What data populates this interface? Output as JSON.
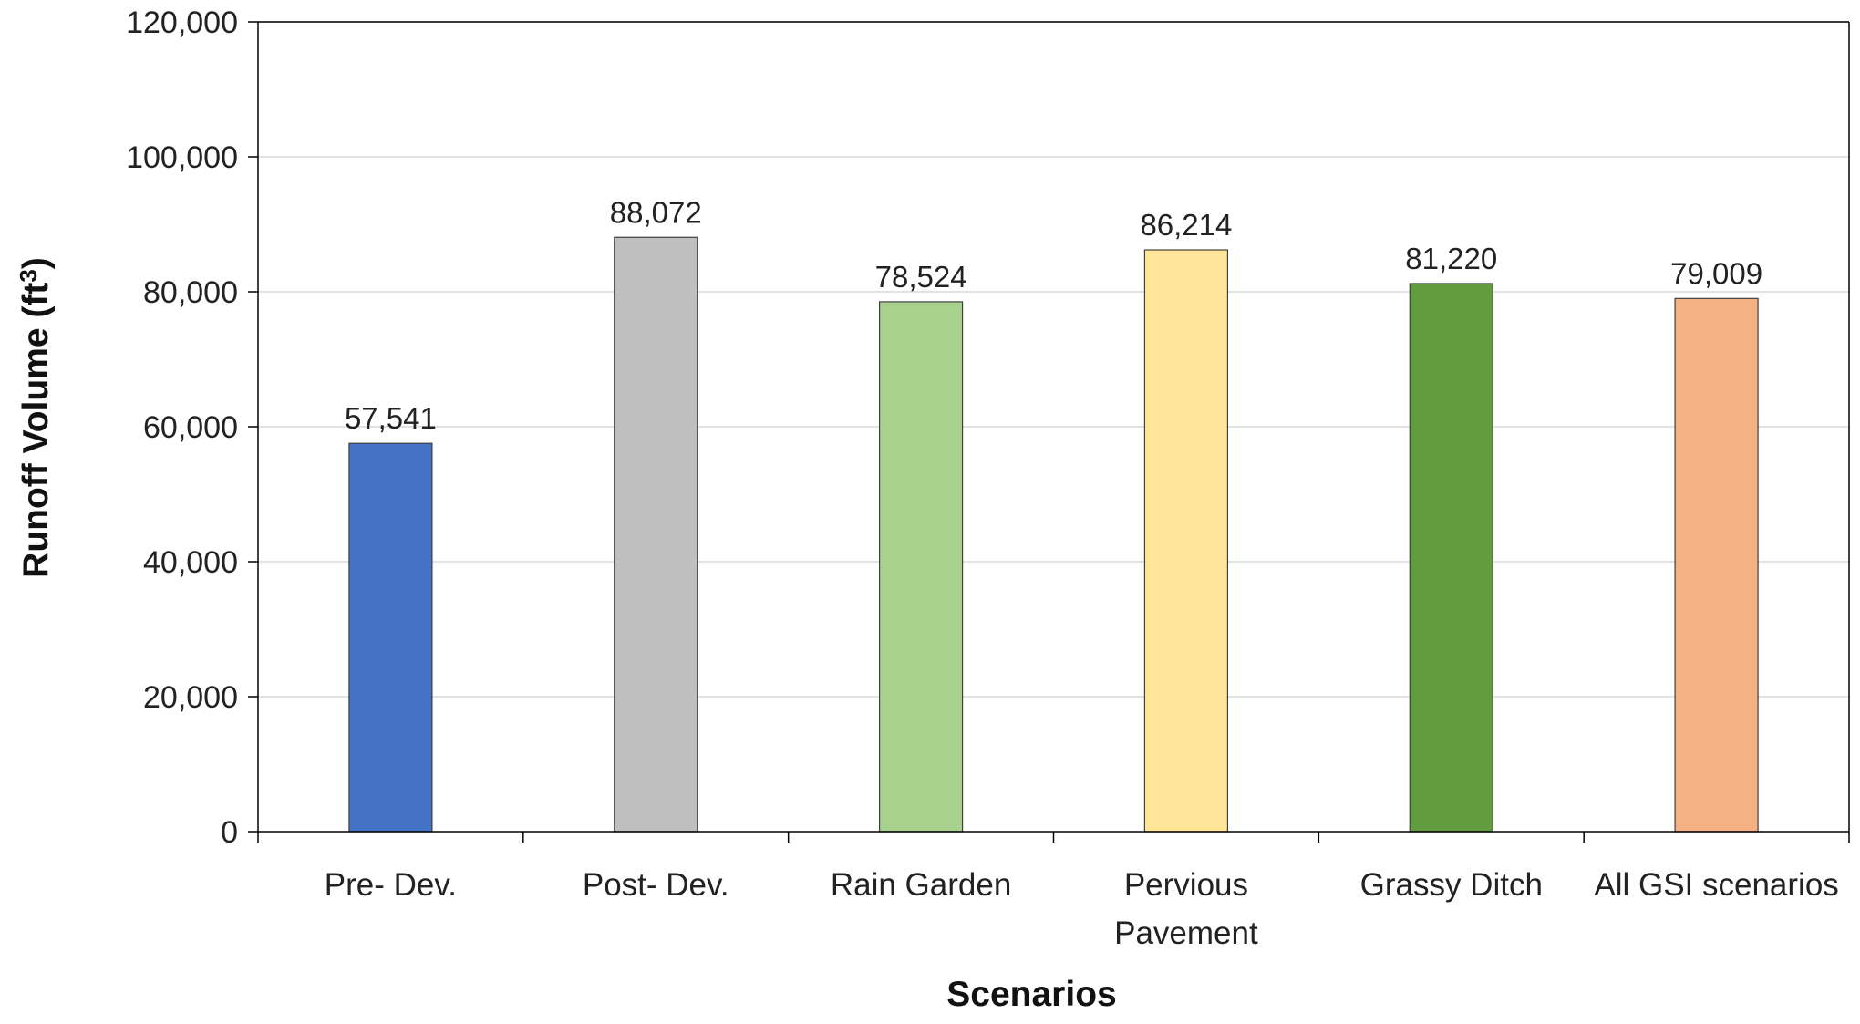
{
  "chart_data": {
    "type": "bar",
    "title": "",
    "xlabel": "Scenarios",
    "ylabel": "Runoff Volume (ft",
    "ylabel_sup": "3",
    "ylabel_close": ")",
    "categories": [
      [
        "Pre- Dev."
      ],
      [
        "Post- Dev."
      ],
      [
        "Rain Garden"
      ],
      [
        "Pervious",
        "Pavement"
      ],
      [
        "Grassy Ditch"
      ],
      [
        "All GSI scenarios"
      ]
    ],
    "values": [
      57541,
      88072,
      78524,
      86214,
      81220,
      79009
    ],
    "data_labels": [
      "57,541",
      "88,072",
      "78,524",
      "86,214",
      "81,220",
      "79,009"
    ],
    "bar_colors": [
      "#4472C4",
      "#BFBFBF",
      "#A9D18E",
      "#FFE699",
      "#629C3E",
      "#F4B183"
    ],
    "ylim": [
      0,
      120000
    ],
    "yticks": [
      0,
      20000,
      40000,
      60000,
      80000,
      100000,
      120000
    ],
    "ytick_labels": [
      "0",
      "20,000",
      "40,000",
      "60,000",
      "80,000",
      "100,000",
      "120,000"
    ],
    "grid": true,
    "legend": "none"
  }
}
